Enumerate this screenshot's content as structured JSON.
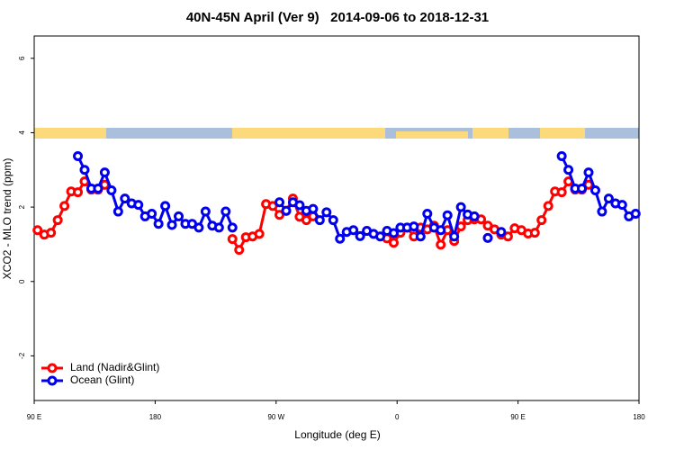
{
  "chart_data": {
    "type": "line",
    "title": "40N-45N April (Ver 9)   2014-09-06 to 2018-12-31",
    "xlabel": "Longitude (deg E)",
    "ylabel": "XCO2 - MLO trend (ppm)",
    "x": [
      92.5,
      97.5,
      102.5,
      107.5,
      112.5,
      117.5,
      122.5,
      127.5,
      132.5,
      137.5,
      142.5,
      147.5,
      152.5,
      157.5,
      162.5,
      167.5,
      172.5,
      177.5,
      182.5,
      187.5,
      192.5,
      197.5,
      202.5,
      207.5,
      212.5,
      217.5,
      222.5,
      227.5,
      232.5,
      237.5,
      242.5,
      247.5,
      252.5,
      257.5,
      262.5,
      267.5,
      272.5,
      277.5,
      282.5,
      287.5,
      292.5,
      297.5,
      302.5,
      307.5,
      312.5,
      317.5,
      322.5,
      327.5,
      332.5,
      337.5,
      342.5,
      347.5,
      352.5,
      357.5,
      362.5,
      367.5,
      372.5,
      377.5,
      382.5,
      387.5,
      392.5,
      397.5,
      402.5,
      407.5,
      412.5,
      417.5,
      422.5,
      427.5,
      432.5,
      437.5,
      442.5,
      447.5,
      452.5,
      457.5,
      462.5,
      467.5,
      472.5,
      477.5,
      482.5,
      487.5,
      492.5,
      497.5,
      502.5,
      507.5,
      512.5,
      517.5,
      522.5,
      527.5,
      532.5,
      537.5
    ],
    "series": [
      {
        "name": "Land (Nadir&Glint)",
        "color": "#ff0000",
        "values": [
          1.38,
          1.26,
          1.31,
          1.65,
          2.03,
          2.42,
          2.4,
          2.69,
          2.47,
          2.47,
          2.6,
          null,
          null,
          null,
          null,
          null,
          null,
          null,
          null,
          null,
          null,
          null,
          null,
          null,
          null,
          null,
          null,
          null,
          null,
          1.14,
          0.85,
          1.19,
          1.21,
          1.28,
          2.08,
          2.03,
          1.79,
          1.9,
          2.23,
          1.74,
          1.65,
          1.75,
          null,
          null,
          null,
          null,
          null,
          null,
          null,
          null,
          null,
          null,
          1.16,
          1.04,
          1.31,
          1.45,
          1.21,
          1.45,
          1.4,
          1.5,
          0.99,
          1.38,
          1.09,
          1.48,
          1.65,
          1.67,
          1.67,
          1.5,
          1.4,
          1.26,
          1.21,
          1.43,
          1.38,
          1.29,
          1.31,
          1.65,
          2.03,
          2.42,
          2.4,
          2.69,
          2.47,
          2.47,
          2.6,
          null,
          null,
          null,
          null,
          null,
          null,
          null
        ]
      },
      {
        "name": "Ocean (Glint)",
        "color": "#0000ee",
        "values": [
          null,
          null,
          null,
          null,
          null,
          null,
          3.37,
          3.0,
          2.5,
          2.5,
          2.93,
          2.45,
          1.88,
          2.23,
          2.1,
          2.06,
          1.75,
          1.82,
          1.55,
          2.03,
          1.52,
          1.75,
          1.55,
          1.55,
          1.45,
          1.88,
          1.5,
          1.45,
          1.88,
          1.45,
          null,
          null,
          null,
          null,
          null,
          null,
          2.13,
          1.9,
          2.13,
          2.05,
          1.9,
          1.95,
          1.65,
          1.86,
          1.65,
          1.15,
          1.33,
          1.38,
          1.22,
          1.36,
          1.28,
          1.21,
          1.36,
          1.3,
          1.45,
          1.45,
          1.48,
          1.21,
          1.82,
          1.45,
          1.38,
          1.78,
          1.21,
          2.0,
          1.8,
          1.75,
          null,
          1.17,
          null,
          1.33,
          null,
          null,
          null,
          null,
          null,
          null,
          null,
          null,
          3.37,
          3.0,
          2.5,
          2.5,
          2.93,
          2.45,
          1.88,
          2.23,
          2.1,
          2.06,
          1.75,
          1.82
        ]
      }
    ],
    "xlim": [
      90,
      540
    ],
    "xticks": [
      {
        "value": 90,
        "label": "90 E"
      },
      180,
      {
        "value": 270,
        "label": "90 W"
      },
      {
        "value": 360,
        "label": "0"
      },
      {
        "value": 450,
        "label": "90 E"
      },
      {
        "value": 540,
        "label": "180"
      }
    ],
    "ylim": [
      -3.2,
      6.6
    ],
    "yticks": [
      -2,
      0,
      2,
      4,
      6
    ],
    "legend": "bottomleft"
  }
}
